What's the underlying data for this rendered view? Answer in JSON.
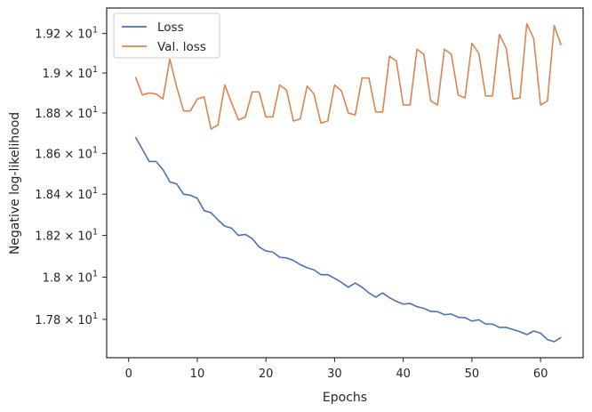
{
  "chart_data": {
    "type": "line",
    "title": "",
    "xlabel": "Epochs",
    "ylabel": "Negative log-likelihood",
    "xlim": [
      -3.2,
      66.2
    ],
    "ylim": [
      17.62,
      19.33
    ],
    "yscale": "log",
    "grid": false,
    "legend_position": "top-left",
    "x_ticks": [
      {
        "value": 0,
        "label": "0"
      },
      {
        "value": 10,
        "label": "10"
      },
      {
        "value": 20,
        "label": "20"
      },
      {
        "value": 30,
        "label": "30"
      },
      {
        "value": 40,
        "label": "40"
      },
      {
        "value": 50,
        "label": "50"
      },
      {
        "value": 60,
        "label": "60"
      }
    ],
    "y_ticks": [
      {
        "value": 17.8,
        "mantissa": "1.78"
      },
      {
        "value": 18.0,
        "mantissa": "1.8"
      },
      {
        "value": 18.2,
        "mantissa": "1.82"
      },
      {
        "value": 18.4,
        "mantissa": "1.84"
      },
      {
        "value": 18.6,
        "mantissa": "1.86"
      },
      {
        "value": 18.8,
        "mantissa": "1.88"
      },
      {
        "value": 19.0,
        "mantissa": "1.9"
      },
      {
        "value": 19.2,
        "mantissa": "1.92"
      }
    ],
    "y_tick_times": "× 10",
    "y_tick_exponent": "1",
    "series": [
      {
        "name": "Loss",
        "color": "#4c72b0",
        "x": [
          1,
          2,
          3,
          4,
          5,
          6,
          7,
          8,
          9,
          10,
          11,
          12,
          13,
          14,
          15,
          16,
          17,
          18,
          19,
          20,
          21,
          22,
          23,
          24,
          25,
          26,
          27,
          28,
          29,
          30,
          31,
          32,
          33,
          34,
          35,
          36,
          37,
          38,
          39,
          40,
          41,
          42,
          43,
          44,
          45,
          46,
          47,
          48,
          49,
          50,
          51,
          52,
          53,
          54,
          55,
          56,
          57,
          58,
          59,
          60,
          61,
          62,
          63
        ],
        "values": [
          18.68,
          18.62,
          18.56,
          18.56,
          18.52,
          18.46,
          18.45,
          18.4,
          18.395,
          18.38,
          18.32,
          18.31,
          18.275,
          18.245,
          18.235,
          18.2,
          18.205,
          18.185,
          18.145,
          18.125,
          18.12,
          18.095,
          18.092,
          18.08,
          18.06,
          18.045,
          18.035,
          18.012,
          18.012,
          17.995,
          17.975,
          17.952,
          17.972,
          17.952,
          17.925,
          17.905,
          17.925,
          17.902,
          17.885,
          17.872,
          17.875,
          17.86,
          17.852,
          17.838,
          17.836,
          17.822,
          17.825,
          17.81,
          17.808,
          17.792,
          17.798,
          17.778,
          17.778,
          17.762,
          17.762,
          17.752,
          17.742,
          17.728,
          17.745,
          17.735,
          17.705,
          17.695,
          17.715
        ]
      },
      {
        "name": "Val. loss",
        "color": "#dd8452",
        "x": [
          1,
          2,
          3,
          4,
          5,
          6,
          7,
          8,
          9,
          10,
          11,
          12,
          13,
          14,
          15,
          16,
          17,
          18,
          19,
          20,
          21,
          22,
          23,
          24,
          25,
          26,
          27,
          28,
          29,
          30,
          31,
          32,
          33,
          34,
          35,
          36,
          37,
          38,
          39,
          40,
          41,
          42,
          43,
          44,
          45,
          46,
          47,
          48,
          49,
          50,
          51,
          52,
          53,
          54,
          55,
          56,
          57,
          58,
          59,
          60,
          61,
          62,
          63
        ],
        "values": [
          18.98,
          18.89,
          18.9,
          18.895,
          18.87,
          19.07,
          18.93,
          18.81,
          18.81,
          18.87,
          18.88,
          18.72,
          18.74,
          18.94,
          18.85,
          18.765,
          18.78,
          18.905,
          18.905,
          18.78,
          18.78,
          18.94,
          18.915,
          18.76,
          18.77,
          18.935,
          18.895,
          18.75,
          18.76,
          18.94,
          18.91,
          18.8,
          18.79,
          18.975,
          18.975,
          18.805,
          18.805,
          19.085,
          19.06,
          18.84,
          18.84,
          19.12,
          19.095,
          18.86,
          18.84,
          19.12,
          19.095,
          18.89,
          18.875,
          19.15,
          19.1,
          18.885,
          18.885,
          19.195,
          19.125,
          18.87,
          18.875,
          19.25,
          19.175,
          18.84,
          18.86,
          19.24,
          19.14
        ]
      }
    ]
  }
}
